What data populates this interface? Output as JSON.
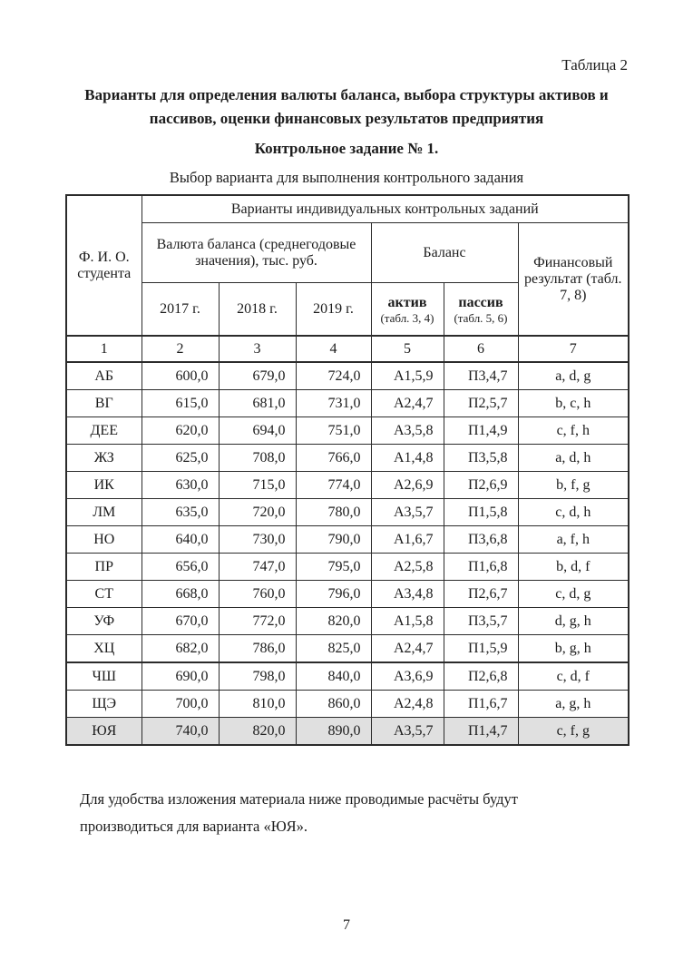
{
  "document": {
    "table_caption": "Таблица 2",
    "title": "Варианты для определения валюты баланса, выбора структуры активов и пассивов, оценки финансовых результатов предприятия",
    "subtitle": "Контрольное задание № 1.",
    "table_title": "Выбор варианта для выполнения контрольного задания",
    "note": "Для удобства изложения материала ниже проводимые расчёты будут производиться для варианта «ЮЯ».",
    "page_number": "7"
  },
  "table": {
    "header": {
      "fio": "Ф. И. О. студента",
      "variants_group": "Варианты индивидуальных контрольных заданий",
      "currency_group": "Валюта баланса (среднегодовые значения), тыс. руб.",
      "balance_group": "Баланс",
      "fin_result": "Финансовый результат (табл. 7, 8)",
      "years": [
        "2017 г.",
        "2018 г.",
        "2019 г."
      ],
      "asset_label": "актив",
      "asset_sub": "(табл. 3, 4)",
      "liability_label": "пассив",
      "liability_sub": "(табл. 5, 6)",
      "column_numbers": [
        "1",
        "2",
        "3",
        "4",
        "5",
        "6",
        "7"
      ]
    },
    "rows": [
      [
        "АБ",
        "600,0",
        "679,0",
        "724,0",
        "А1,5,9",
        "П3,4,7",
        "a, d, g"
      ],
      [
        "ВГ",
        "615,0",
        "681,0",
        "731,0",
        "А2,4,7",
        "П2,5,7",
        "b, c, h"
      ],
      [
        "ДЕЕ",
        "620,0",
        "694,0",
        "751,0",
        "А3,5,8",
        "П1,4,9",
        "c, f, h"
      ],
      [
        "ЖЗ",
        "625,0",
        "708,0",
        "766,0",
        "А1,4,8",
        "П3,5,8",
        "a, d, h"
      ],
      [
        "ИК",
        "630,0",
        "715,0",
        "774,0",
        "А2,6,9",
        "П2,6,9",
        "b, f, g"
      ],
      [
        "ЛМ",
        "635,0",
        "720,0",
        "780,0",
        "А3,5,7",
        "П1,5,8",
        "c, d, h"
      ],
      [
        "НО",
        "640,0",
        "730,0",
        "790,0",
        "А1,6,7",
        "П3,6,8",
        "a, f, h"
      ],
      [
        "ПР",
        "656,0",
        "747,0",
        "795,0",
        "А2,5,8",
        "П1,6,8",
        "b, d, f"
      ],
      [
        "СТ",
        "668,0",
        "760,0",
        "796,0",
        "А3,4,8",
        "П2,6,7",
        "c, d, g"
      ],
      [
        "УФ",
        "670,0",
        "772,0",
        "820,0",
        "А1,5,8",
        "П3,5,7",
        "d, g, h"
      ],
      [
        "ХЦ",
        "682,0",
        "786,0",
        "825,0",
        "А2,4,7",
        "П1,5,9",
        "b, g, h"
      ],
      [
        "ЧШ",
        "690,0",
        "798,0",
        "840,0",
        "А3,6,9",
        "П2,6,8",
        "c, d, f"
      ],
      [
        "ЩЭ",
        "700,0",
        "810,0",
        "860,0",
        "А2,4,8",
        "П1,6,7",
        "a, g, h"
      ],
      [
        "ЮЯ",
        "740,0",
        "820,0",
        "890,0",
        "А3,5,7",
        "П1,4,7",
        "c, f, g"
      ]
    ],
    "highlighted_variant": "ЮЯ"
  }
}
